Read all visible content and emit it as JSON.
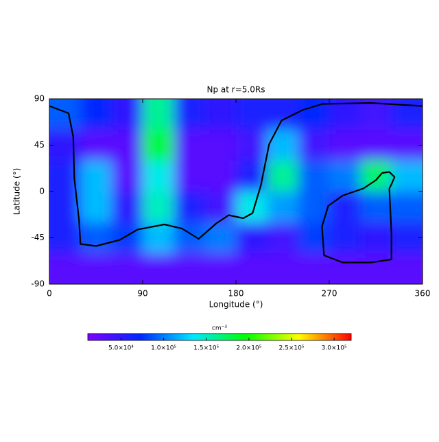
{
  "chart_data": {
    "type": "heatmap",
    "title": "Np at r=5.0Rs",
    "x_label": "Longitude (°)",
    "y_label": "Latitude (°)",
    "xlim": [
      0,
      360
    ],
    "xticks": [
      0,
      90,
      180,
      270,
      360
    ],
    "ylim": [
      -90,
      90
    ],
    "yticks": [
      90,
      45,
      0,
      -45,
      -90
    ],
    "x": [
      15,
      45,
      75,
      105,
      135,
      165,
      195,
      225,
      255,
      285,
      315,
      345
    ],
    "y": [
      75,
      45,
      15,
      -15,
      -45,
      -75
    ],
    "z": [
      [
        90000,
        70000,
        50000,
        160000,
        60000,
        50000,
        60000,
        60000,
        70000,
        50000,
        40000,
        60000
      ],
      [
        50000,
        30000,
        30000,
        180000,
        30000,
        30000,
        40000,
        120000,
        40000,
        30000,
        30000,
        30000
      ],
      [
        60000,
        120000,
        30000,
        140000,
        30000,
        30000,
        60000,
        160000,
        90000,
        100000,
        170000,
        120000
      ],
      [
        60000,
        120000,
        50000,
        150000,
        60000,
        40000,
        140000,
        110000,
        90000,
        60000,
        90000,
        90000
      ],
      [
        60000,
        90000,
        80000,
        120000,
        90000,
        100000,
        50000,
        40000,
        80000,
        60000,
        50000,
        60000
      ],
      [
        30000,
        30000,
        30000,
        30000,
        30000,
        30000,
        30000,
        30000,
        30000,
        30000,
        30000,
        30000
      ]
    ],
    "colormap": [
      "#7f00ff",
      "#0028ff",
      "#00e8ff",
      "#00ff00",
      "#ffff00",
      "#ff0000"
    ],
    "colorbar_label": "cm⁻³",
    "clim": [
      11000,
      320000
    ],
    "colorbar_ticks": [
      {
        "value": 50000,
        "label": "5.0×10⁴"
      },
      {
        "value": 100000,
        "label": "1.0×10⁵"
      },
      {
        "value": 150000,
        "label": "1.5×10⁵"
      },
      {
        "value": 200000,
        "label": "2.0×10⁵"
      },
      {
        "value": 250000,
        "label": "2.5×10⁵"
      },
      {
        "value": 300000,
        "label": "3.0×10⁵"
      }
    ],
    "contour_color": "#000000",
    "contours": [
      {
        "x": [
          0,
          18.5,
          23,
          24,
          28.5,
          30,
          45,
          68,
          85,
          111,
          128,
          144,
          161,
          173,
          187,
          196,
          204,
          212,
          224,
          244,
          263,
          310,
          360
        ],
        "y": [
          83,
          76,
          53,
          13,
          -27,
          -51,
          -53,
          -47,
          -37,
          -32,
          -36,
          -46,
          -31,
          -23,
          -26,
          -21,
          6,
          46,
          69,
          79,
          85,
          86,
          83
        ]
      },
      {
        "x": [
          328,
          330,
          330,
          310,
          283,
          265,
          263,
          269,
          283,
          303,
          315,
          321,
          328,
          333,
          330,
          328
        ],
        "y": [
          3,
          -41,
          -66,
          -69,
          -69,
          -62,
          -34,
          -14,
          -4,
          3,
          11,
          18,
          19,
          14,
          7,
          3
        ]
      }
    ]
  }
}
